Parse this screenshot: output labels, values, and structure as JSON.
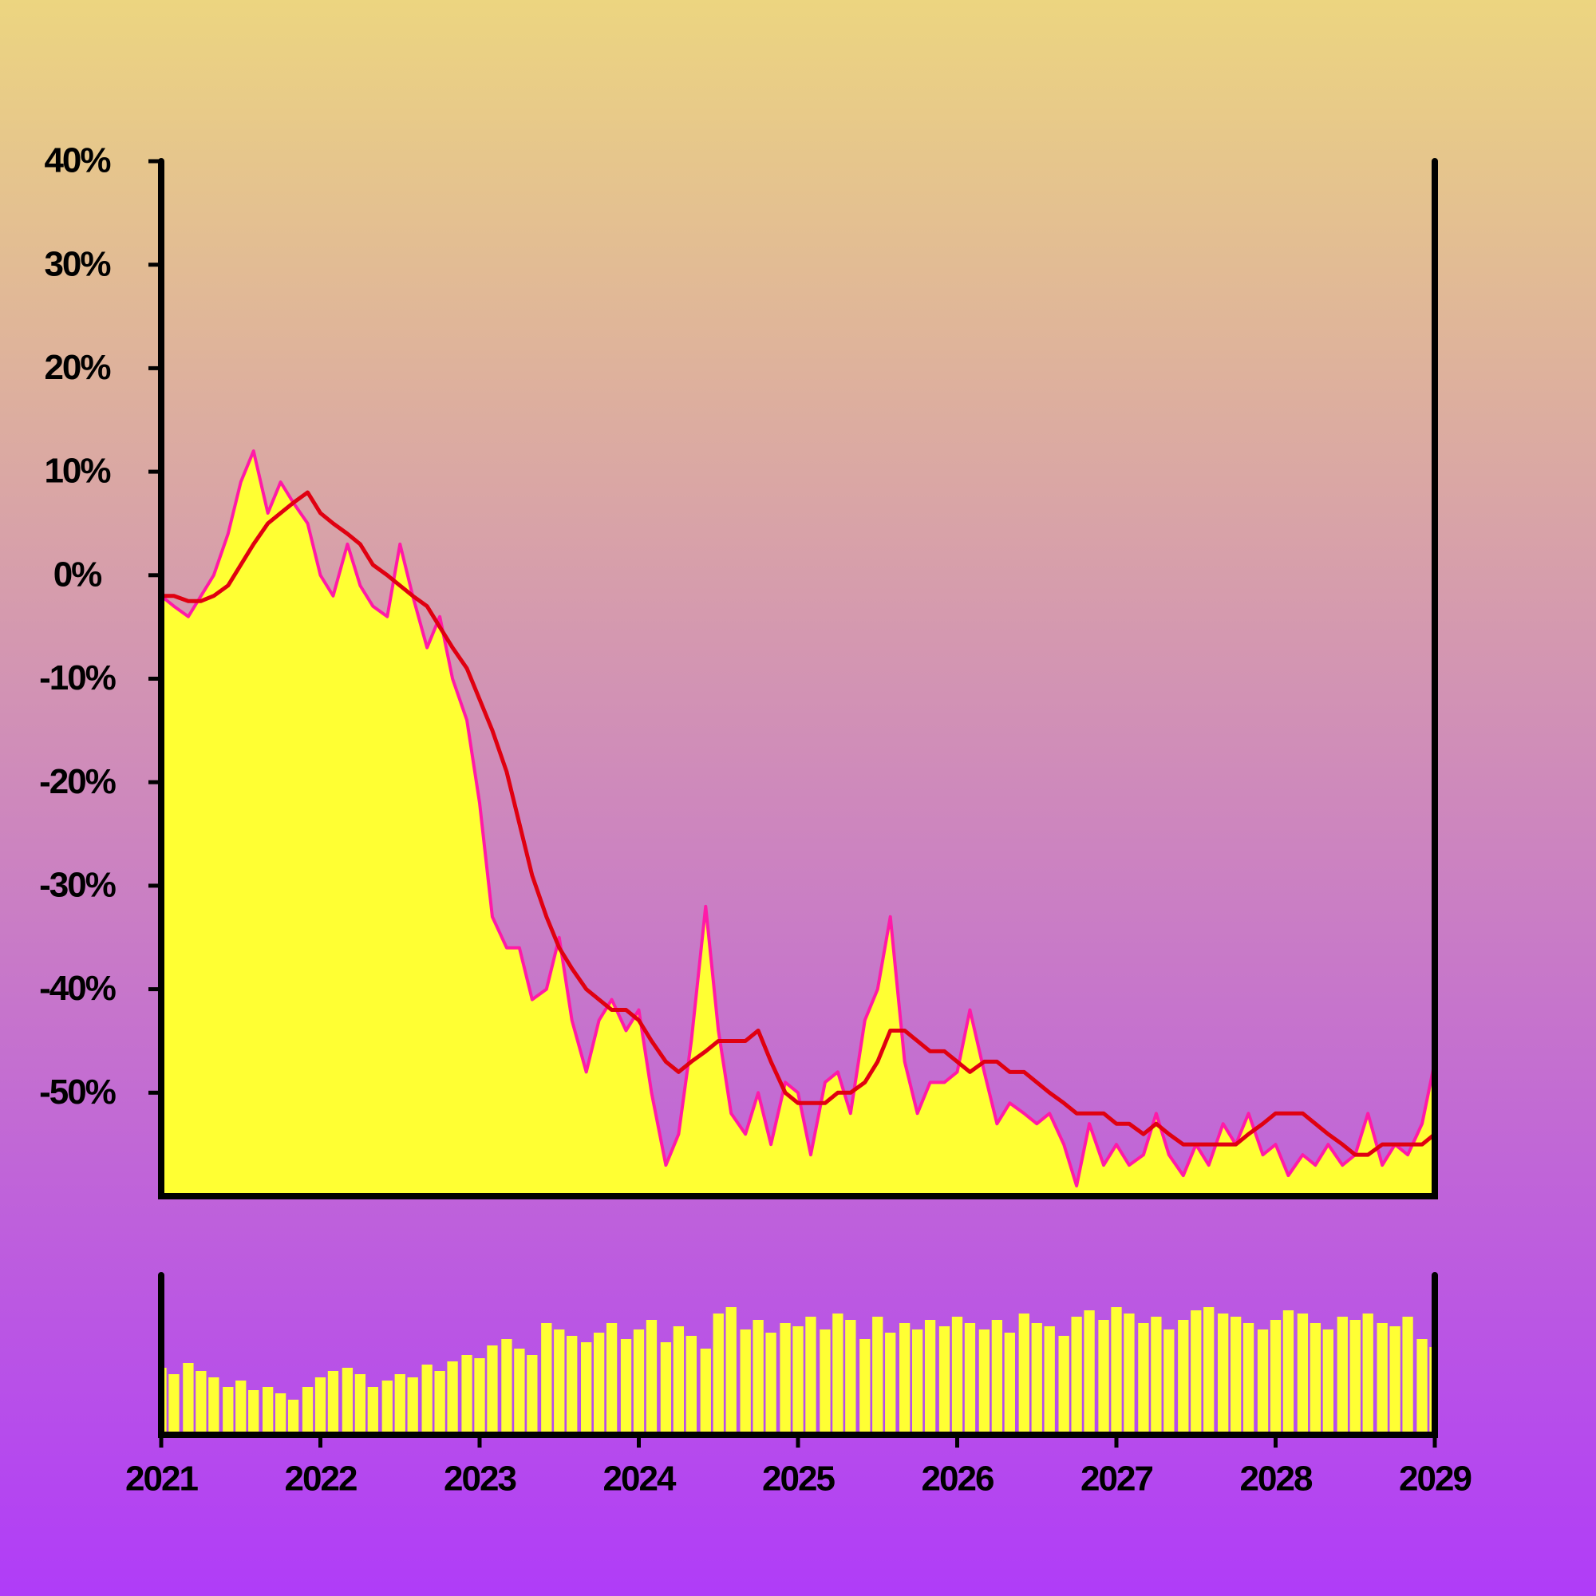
{
  "chart_data": {
    "type": "area",
    "x": [
      2021,
      2021.08,
      2021.17,
      2021.25,
      2021.33,
      2021.42,
      2021.5,
      2021.58,
      2021.67,
      2021.75,
      2021.83,
      2021.92,
      2022,
      2022.08,
      2022.17,
      2022.25,
      2022.33,
      2022.42,
      2022.5,
      2022.58,
      2022.67,
      2022.75,
      2022.83,
      2022.92,
      2023,
      2023.08,
      2023.17,
      2023.25,
      2023.33,
      2023.42,
      2023.5,
      2023.58,
      2023.67,
      2023.75,
      2023.83,
      2023.92,
      2024,
      2024.08,
      2024.17,
      2024.25,
      2024.33,
      2024.42,
      2024.5,
      2024.58,
      2024.67,
      2024.75,
      2024.83,
      2024.92,
      2025,
      2025.08,
      2025.17,
      2025.25,
      2025.33,
      2025.42,
      2025.5,
      2025.58,
      2025.67,
      2025.75,
      2025.83,
      2025.92,
      2026,
      2026.08,
      2026.17,
      2026.25,
      2026.33,
      2026.42,
      2026.5,
      2026.58,
      2026.67,
      2026.75,
      2026.83,
      2026.92,
      2027,
      2027.08,
      2027.17,
      2027.25,
      2027.33,
      2027.42,
      2027.5,
      2027.58,
      2027.67,
      2027.75,
      2027.83,
      2027.92,
      2028,
      2028.08,
      2028.17,
      2028.25,
      2028.33,
      2028.42,
      2028.5,
      2028.58,
      2028.67,
      2028.75,
      2028.83,
      2028.92,
      2029
    ],
    "series": [
      {
        "color": "#ff1aa8",
        "fill": "#ffff33",
        "values": [
          -2,
          -3,
          -4,
          -2,
          0,
          4,
          9,
          12,
          6,
          9,
          7,
          5,
          0,
          -2,
          3,
          -1,
          -3,
          -4,
          3,
          -2,
          -7,
          -4,
          -10,
          -14,
          -22,
          -33,
          -36,
          -36,
          -41,
          -40,
          -35,
          -43,
          -48,
          -43,
          -41,
          -44,
          -42,
          -50,
          -57,
          -54,
          -45,
          -32,
          -44,
          -52,
          -54,
          -50,
          -55,
          -49,
          -50,
          -56,
          -49,
          -48,
          -52,
          -43,
          -40,
          -33,
          -47,
          -52,
          -49,
          -49,
          -48,
          -42,
          -48,
          -53,
          -51,
          -52,
          -53,
          -52,
          -55,
          -59,
          -53,
          -57,
          -55,
          -57,
          -56,
          -52,
          -56,
          -58,
          -55,
          -57,
          -53,
          -55,
          -52,
          -56,
          -55,
          -58,
          -56,
          -57,
          -55,
          -57,
          -56,
          -52,
          -57,
          -55,
          -56,
          -53,
          -47
        ]
      },
      {
        "color": "#e00010",
        "values": [
          -2,
          -2,
          -2.5,
          -2.5,
          -2,
          -1,
          1,
          3,
          5,
          6,
          7,
          8,
          6,
          5,
          4,
          3,
          1,
          0,
          -1,
          -2,
          -3,
          -5,
          -7,
          -9,
          -12,
          -15,
          -19,
          -24,
          -29,
          -33,
          -36,
          -38,
          -40,
          -41,
          -42,
          -42,
          -43,
          -45,
          -47,
          -48,
          -47,
          -46,
          -45,
          -45,
          -45,
          -44,
          -47,
          -50,
          -51,
          -51,
          -51,
          -50,
          -50,
          -49,
          -47,
          -44,
          -44,
          -45,
          -46,
          -46,
          -47,
          -48,
          -47,
          -47,
          -48,
          -48,
          -49,
          -50,
          -51,
          -52,
          -52,
          -52,
          -53,
          -53,
          -54,
          -53,
          -54,
          -55,
          -55,
          -55,
          -55,
          -55,
          -54,
          -53,
          -52,
          -52,
          -52,
          -53,
          -54,
          -55,
          -56,
          -56,
          -55,
          -55,
          -55,
          -55,
          -54
        ]
      }
    ],
    "volume": {
      "color": "#ffff33",
      "ylim": [
        0,
        100
      ],
      "values": [
        42,
        38,
        45,
        40,
        36,
        30,
        34,
        28,
        30,
        26,
        22,
        30,
        36,
        40,
        42,
        38,
        30,
        34,
        38,
        36,
        44,
        40,
        46,
        50,
        48,
        56,
        60,
        54,
        50,
        70,
        66,
        62,
        58,
        64,
        70,
        60,
        66,
        72,
        58,
        68,
        62,
        54,
        76,
        80,
        66,
        72,
        64,
        70,
        68,
        74,
        66,
        76,
        72,
        60,
        74,
        64,
        70,
        66,
        72,
        68,
        74,
        70,
        66,
        72,
        64,
        76,
        70,
        68,
        62,
        74,
        78,
        72,
        80,
        76,
        70,
        74,
        66,
        72,
        78,
        80,
        76,
        74,
        70,
        66,
        72,
        78,
        76,
        70,
        66,
        74,
        72,
        76,
        70,
        68,
        74,
        60,
        55
      ]
    },
    "xlim": [
      2021,
      2029
    ],
    "xticks": [
      2021,
      2022,
      2023,
      2024,
      2025,
      2026,
      2027,
      2028,
      2029
    ],
    "ylim": [
      -60,
      40
    ],
    "yticks": [
      {
        "value": 40,
        "label": "40%"
      },
      {
        "value": 30,
        "label": "30%"
      },
      {
        "value": 20,
        "label": "20%"
      },
      {
        "value": 10,
        "label": "10%"
      },
      {
        "value": 0,
        "label": "0%"
      },
      {
        "value": -10,
        "label": "-10%"
      },
      {
        "value": -20,
        "label": "-20%"
      },
      {
        "value": -30,
        "label": "-30%"
      },
      {
        "value": -40,
        "label": "-40%"
      },
      {
        "value": -50,
        "label": "-50%"
      }
    ]
  }
}
